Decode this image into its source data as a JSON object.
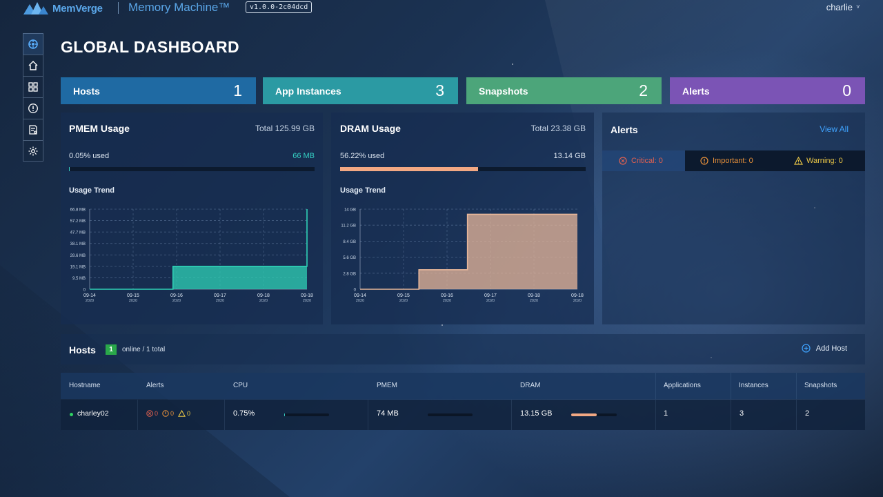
{
  "header": {
    "brand": "MemVerge",
    "product": "Memory Machine™",
    "version": "v1.0.0-2c04dcd",
    "user": "charlie",
    "user_caret": "v"
  },
  "sidebar": {
    "items": [
      {
        "icon": "dashboard-icon",
        "active": true
      },
      {
        "icon": "home-icon",
        "active": false
      },
      {
        "icon": "grid-icon",
        "active": false
      },
      {
        "icon": "alert-icon",
        "active": false
      },
      {
        "icon": "report-icon",
        "active": false
      },
      {
        "icon": "settings-icon",
        "active": false
      }
    ]
  },
  "page_title": "GLOBAL DASHBOARD",
  "stats": [
    {
      "label": "Hosts",
      "value": "1",
      "color": "#1f6aa3"
    },
    {
      "label": "App Instances",
      "value": "3",
      "color": "#2b9aa3"
    },
    {
      "label": "Snapshots",
      "value": "2",
      "color": "#4ca57a"
    },
    {
      "label": "Alerts",
      "value": "0",
      "color": "#7b54b5"
    }
  ],
  "pmem": {
    "title": "PMEM Usage",
    "total": "Total 125.99 GB",
    "used_pct_text": "0.05% used",
    "used_value": "66 MB",
    "used_fraction": 0.0005,
    "trend_label": "Usage Trend"
  },
  "dram": {
    "title": "DRAM Usage",
    "total": "Total 23.38 GB",
    "used_pct_text": "56.22% used",
    "used_value": "13.14 GB",
    "used_fraction": 0.5622,
    "trend_label": "Usage Trend"
  },
  "alerts_panel": {
    "title": "Alerts",
    "view_all": "View All",
    "critical": "Critical: 0",
    "important": "Important: 0",
    "warning": "Warning: 0",
    "critical_color": "#e0604f",
    "important_color": "#e9913a",
    "warning_color": "#e8c547"
  },
  "chart_data": [
    {
      "type": "area",
      "yticks": [
        "0",
        "9.5 MB",
        "19.1 MB",
        "28.6 MB",
        "38.1 MB",
        "47.7 MB",
        "57.2 MB",
        "66.8 MB"
      ],
      "xticks": [
        [
          "09-14",
          "2020"
        ],
        [
          "09-15",
          "2020"
        ],
        [
          "09-16",
          "2020"
        ],
        [
          "09-17",
          "2020"
        ],
        [
          "09-18",
          "2020"
        ],
        [
          "09-18",
          "2020"
        ]
      ],
      "ylim": [
        0,
        66.8
      ],
      "x": [
        0,
        1,
        2.3,
        4.8,
        5.8,
        5.85,
        6
      ],
      "y": [
        0,
        0,
        0,
        19.1,
        19.1,
        19.1,
        66.8
      ],
      "steps": [
        [
          0,
          0
        ],
        [
          2.3,
          0
        ],
        [
          2.3,
          19.1
        ],
        [
          6.0,
          19.1
        ],
        [
          6.0,
          66.8
        ]
      ],
      "color": "#2fd1b6",
      "xlabel": "",
      "ylabel": ""
    },
    {
      "type": "area",
      "yticks": [
        "0",
        "2.8 GB",
        "5.6 GB",
        "8.4 GB",
        "11.2 GB",
        "14 GB"
      ],
      "xticks": [
        [
          "09-14",
          "2020"
        ],
        [
          "09-15",
          "2020"
        ],
        [
          "09-16",
          "2020"
        ],
        [
          "09-17",
          "2020"
        ],
        [
          "09-18",
          "2020"
        ],
        [
          "09-18",
          "2020"
        ]
      ],
      "ylim": [
        0,
        14
      ],
      "steps": [
        [
          0,
          0
        ],
        [
          2.3,
          0
        ],
        [
          2.3,
          3.4
        ],
        [
          4.2,
          3.4
        ],
        [
          4.2,
          13.1
        ],
        [
          8.5,
          13.1
        ]
      ],
      "color": "#e8b79a",
      "xlabel": "",
      "ylabel": ""
    }
  ],
  "hosts": {
    "title": "Hosts",
    "online_count": "1",
    "summary": "online / 1 total",
    "add_label": "Add Host",
    "columns": [
      "Hostname",
      "Alerts",
      "CPU",
      "PMEM",
      "DRAM",
      "Applications",
      "Instances",
      "Snapshots"
    ],
    "rows": [
      {
        "hostname": "charley02",
        "alerts_critical": "0",
        "alerts_important": "0",
        "alerts_warning": "0",
        "cpu": "0.75%",
        "cpu_fraction": 0.0075,
        "pmem": "74 MB",
        "pmem_fraction": 0.0006,
        "dram": "13.15 GB",
        "dram_fraction": 0.56,
        "applications": "1",
        "instances": "3",
        "snapshots": "2"
      }
    ]
  }
}
